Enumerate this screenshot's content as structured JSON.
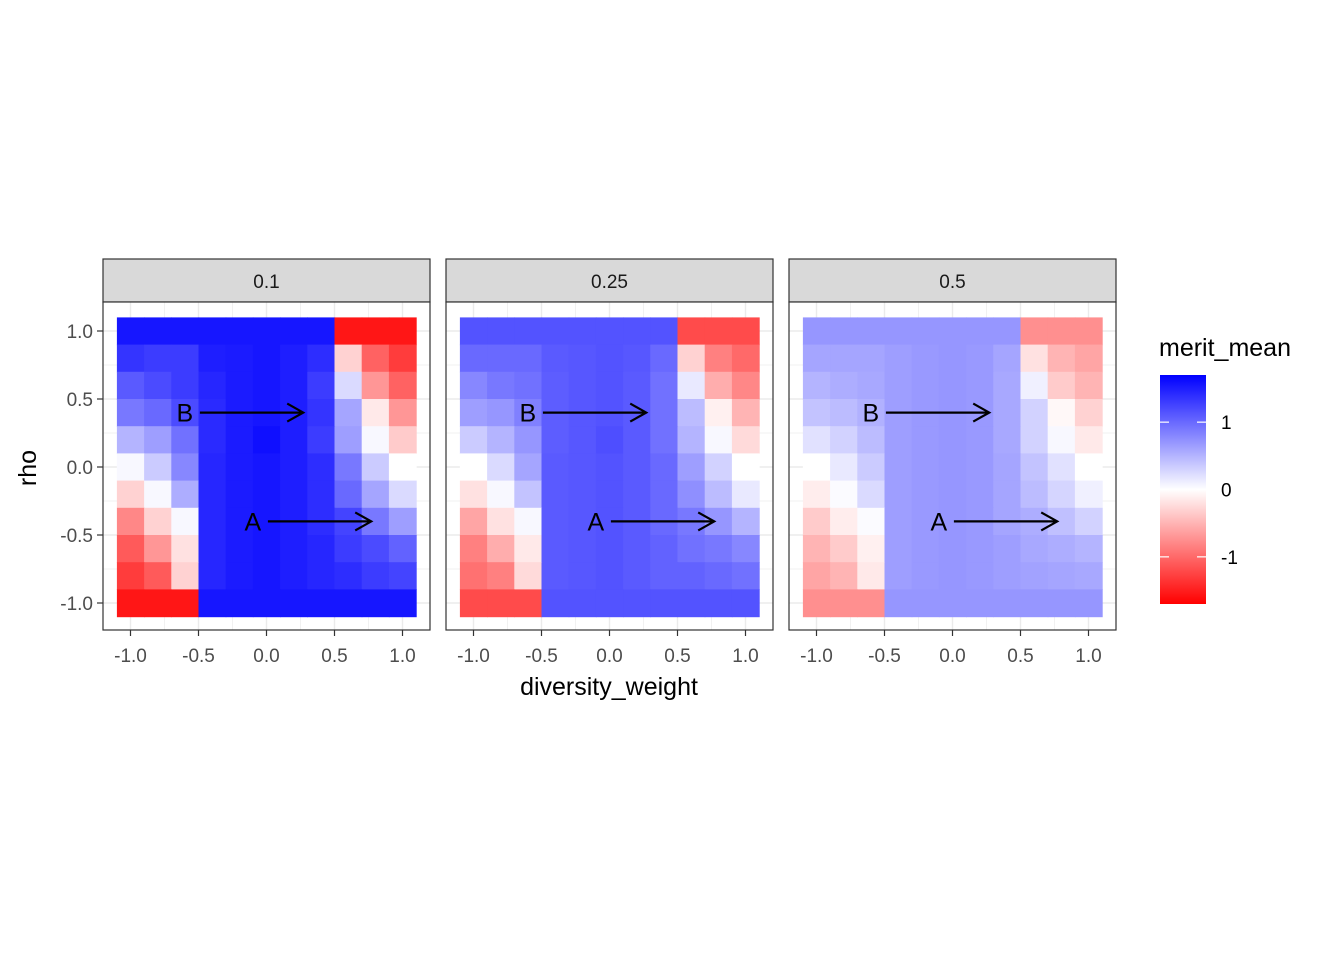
{
  "chart_data": {
    "type": "heatmap",
    "xlabel": "diversity_weight",
    "ylabel": "rho",
    "x_ticks": [
      -1.0,
      -0.5,
      0.0,
      0.5,
      1.0
    ],
    "y_ticks": [
      -1.0,
      -0.5,
      0.0,
      0.5,
      1.0
    ],
    "x_tick_labels": [
      "-1.0",
      "-0.5",
      "0.0",
      "0.5",
      "1.0"
    ],
    "y_tick_labels": [
      "-1.0",
      "-0.5",
      "0.0",
      "0.5",
      "1.0"
    ],
    "xlim": [
      -1.1,
      1.1
    ],
    "ylim": [
      -1.1,
      1.1
    ],
    "grid": true,
    "x": [
      -1.0,
      -0.8,
      -0.6,
      -0.4,
      -0.2,
      0.0,
      0.2,
      0.4,
      0.6,
      0.8,
      1.0
    ],
    "y": [
      -1.0,
      -0.8,
      -0.6,
      -0.4,
      -0.2,
      0.0,
      0.2,
      0.4,
      0.6,
      0.8,
      1.0
    ],
    "legend": {
      "title": "merit_mean",
      "position": "right",
      "low_color": "#ff0000",
      "mid_color": "#ffffff",
      "high_color": "#0000ff",
      "limits": [
        -1.7,
        1.7
      ],
      "breaks": [
        1,
        0,
        -1
      ],
      "break_labels": [
        "1",
        "0",
        "-1"
      ]
    },
    "panels": [
      {
        "label": "0.1",
        "annotations": [
          {
            "text": "B",
            "x": -0.6,
            "y": 0.4,
            "arrow_to": [
              0.27,
              0.4
            ]
          },
          {
            "text": "A",
            "x": -0.1,
            "y": -0.4,
            "arrow_to": [
              0.77,
              -0.4
            ]
          }
        ],
        "values": [
          [
            1.55,
            1.55,
            1.55,
            1.55,
            1.55,
            1.55,
            1.55,
            1.55,
            -1.55,
            -1.55,
            -1.55
          ],
          [
            1.35,
            1.3,
            1.3,
            1.5,
            1.52,
            1.55,
            1.5,
            1.4,
            -0.3,
            -1.05,
            -1.3
          ],
          [
            1.1,
            1.2,
            1.3,
            1.45,
            1.52,
            1.55,
            1.5,
            1.3,
            0.25,
            -0.7,
            -1.05
          ],
          [
            0.9,
            1.0,
            1.2,
            1.42,
            1.52,
            1.55,
            1.5,
            1.35,
            0.6,
            -0.15,
            -0.7
          ],
          [
            0.5,
            0.65,
            0.95,
            1.42,
            1.52,
            1.6,
            1.5,
            1.3,
            0.65,
            0.05,
            -0.35
          ],
          [
            0.05,
            0.35,
            0.8,
            1.45,
            1.52,
            1.55,
            1.5,
            1.4,
            0.9,
            0.35,
            0.0
          ],
          [
            -0.3,
            0.05,
            0.55,
            1.45,
            1.52,
            1.55,
            1.5,
            1.4,
            1.0,
            0.6,
            0.25
          ],
          [
            -0.8,
            -0.3,
            0.05,
            1.45,
            1.52,
            1.55,
            1.5,
            1.4,
            1.25,
            0.9,
            0.65
          ],
          [
            -1.1,
            -0.7,
            -0.2,
            1.45,
            1.52,
            1.55,
            1.5,
            1.45,
            1.3,
            1.2,
            1.05
          ],
          [
            -1.3,
            -1.1,
            -0.3,
            1.45,
            1.52,
            1.55,
            1.5,
            1.45,
            1.4,
            1.3,
            1.25
          ],
          [
            -1.55,
            -1.55,
            -1.55,
            1.55,
            1.55,
            1.55,
            1.55,
            1.55,
            1.55,
            1.55,
            1.55
          ]
        ]
      },
      {
        "label": "0.25",
        "annotations": [
          {
            "text": "B",
            "x": -0.6,
            "y": 0.4,
            "arrow_to": [
              0.27,
              0.4
            ]
          },
          {
            "text": "A",
            "x": -0.1,
            "y": -0.4,
            "arrow_to": [
              0.77,
              -0.4
            ]
          }
        ],
        "values": [
          [
            1.15,
            1.15,
            1.15,
            1.15,
            1.15,
            1.15,
            1.15,
            1.15,
            -1.2,
            -1.2,
            -1.2
          ],
          [
            1.0,
            1.0,
            1.0,
            1.1,
            1.12,
            1.15,
            1.12,
            1.0,
            -0.3,
            -0.85,
            -1.0
          ],
          [
            0.8,
            0.9,
            0.95,
            1.08,
            1.12,
            1.15,
            1.1,
            0.95,
            0.15,
            -0.55,
            -0.8
          ],
          [
            0.65,
            0.7,
            0.85,
            1.08,
            1.12,
            1.15,
            1.1,
            0.95,
            0.45,
            -0.1,
            -0.5
          ],
          [
            0.35,
            0.5,
            0.7,
            1.08,
            1.12,
            1.18,
            1.1,
            0.95,
            0.5,
            0.05,
            -0.25
          ],
          [
            0.0,
            0.25,
            0.6,
            1.1,
            1.12,
            1.15,
            1.1,
            1.0,
            0.65,
            0.3,
            0.0
          ],
          [
            -0.2,
            0.05,
            0.4,
            1.1,
            1.12,
            1.15,
            1.1,
            1.0,
            0.75,
            0.45,
            0.15
          ],
          [
            -0.6,
            -0.2,
            0.05,
            1.1,
            1.12,
            1.15,
            1.1,
            1.0,
            0.9,
            0.7,
            0.5
          ],
          [
            -0.85,
            -0.55,
            -0.15,
            1.1,
            1.12,
            1.15,
            1.1,
            1.05,
            0.95,
            0.9,
            0.8
          ],
          [
            -0.95,
            -0.85,
            -0.25,
            1.1,
            1.12,
            1.15,
            1.1,
            1.05,
            1.05,
            1.0,
            0.95
          ],
          [
            -1.2,
            -1.2,
            -1.2,
            1.15,
            1.15,
            1.15,
            1.15,
            1.15,
            1.15,
            1.15,
            1.15
          ]
        ]
      },
      {
        "label": "0.5",
        "annotations": [
          {
            "text": "B",
            "x": -0.6,
            "y": 0.4,
            "arrow_to": [
              0.27,
              0.4
            ]
          },
          {
            "text": "A",
            "x": -0.1,
            "y": -0.4,
            "arrow_to": [
              0.77,
              -0.4
            ]
          }
        ],
        "values": [
          [
            0.7,
            0.7,
            0.7,
            0.7,
            0.7,
            0.7,
            0.7,
            0.7,
            -0.75,
            -0.75,
            -0.75
          ],
          [
            0.6,
            0.6,
            0.6,
            0.65,
            0.68,
            0.7,
            0.68,
            0.6,
            -0.2,
            -0.5,
            -0.6
          ],
          [
            0.5,
            0.55,
            0.58,
            0.65,
            0.68,
            0.7,
            0.68,
            0.58,
            0.1,
            -0.35,
            -0.5
          ],
          [
            0.4,
            0.45,
            0.52,
            0.65,
            0.68,
            0.7,
            0.68,
            0.58,
            0.3,
            -0.05,
            -0.3
          ],
          [
            0.2,
            0.3,
            0.45,
            0.65,
            0.68,
            0.7,
            0.68,
            0.58,
            0.3,
            0.05,
            -0.15
          ],
          [
            0.0,
            0.15,
            0.35,
            0.65,
            0.68,
            0.7,
            0.68,
            0.6,
            0.4,
            0.2,
            0.0
          ],
          [
            -0.12,
            0.03,
            0.25,
            0.65,
            0.68,
            0.7,
            0.68,
            0.6,
            0.45,
            0.28,
            0.1
          ],
          [
            -0.35,
            -0.12,
            0.03,
            0.65,
            0.68,
            0.7,
            0.68,
            0.6,
            0.55,
            0.42,
            0.3
          ],
          [
            -0.5,
            -0.35,
            -0.1,
            0.65,
            0.68,
            0.7,
            0.68,
            0.65,
            0.58,
            0.55,
            0.5
          ],
          [
            -0.6,
            -0.5,
            -0.15,
            0.65,
            0.68,
            0.7,
            0.68,
            0.65,
            0.62,
            0.6,
            0.58
          ],
          [
            -0.75,
            -0.75,
            -0.75,
            0.7,
            0.7,
            0.7,
            0.7,
            0.7,
            0.7,
            0.7,
            0.7
          ]
        ]
      }
    ]
  }
}
